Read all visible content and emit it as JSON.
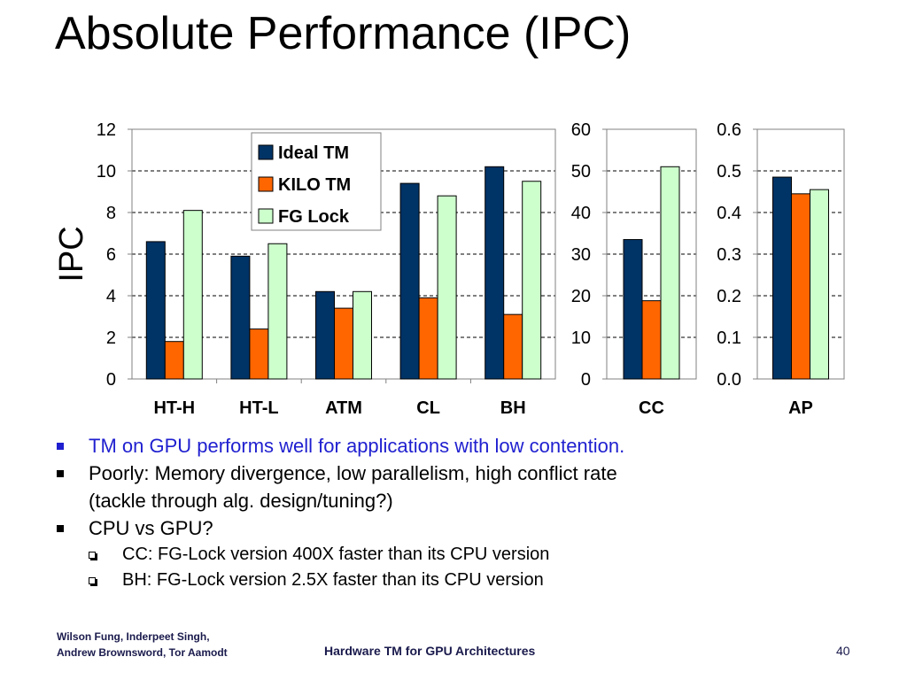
{
  "slide": {
    "title": "Absolute Performance (IPC)",
    "bullets": [
      {
        "text": "TM on GPU performs well for applications with low contention.",
        "color": "#1f1fd0",
        "subs": []
      },
      {
        "text": "Poorly: Memory divergence, low parallelism, high conflict rate",
        "cont": "(tackle through alg. design/tuning?)",
        "subs": []
      },
      {
        "text": "CPU vs GPU?",
        "subs": [
          "CC: FG-Lock version 400X faster than its CPU version",
          "BH: FG-Lock version 2.5X faster than its CPU version"
        ]
      }
    ],
    "footer": {
      "authors_line1": "Wilson Fung, Inderpeet Singh,",
      "authors_line2": "Andrew Brownsword, Tor Aamodt",
      "center": "Hardware TM for GPU Architectures",
      "page": "40"
    }
  },
  "chart_data": [
    {
      "type": "bar",
      "ylabel": "IPC",
      "categories": [
        "HT-H",
        "HT-L",
        "ATM",
        "CL",
        "BH"
      ],
      "ylim": [
        0,
        12
      ],
      "yticks": [
        "0",
        "2",
        "4",
        "6",
        "8",
        "10",
        "12"
      ],
      "grid": true,
      "legend_position": "top-center",
      "series": [
        {
          "name": "Ideal TM",
          "color": "#003366",
          "values": [
            6.6,
            5.9,
            4.2,
            9.4,
            10.2
          ]
        },
        {
          "name": "KILO TM",
          "color": "#ff6600",
          "values": [
            1.8,
            2.4,
            3.4,
            3.9,
            3.1
          ]
        },
        {
          "name": "FG Lock",
          "color": "#ccffcc",
          "values": [
            8.1,
            6.5,
            4.2,
            8.8,
            9.5
          ]
        }
      ]
    },
    {
      "type": "bar",
      "categories": [
        "CC"
      ],
      "ylim": [
        0,
        60
      ],
      "yticks": [
        "0",
        "10",
        "20",
        "30",
        "40",
        "50",
        "60"
      ],
      "grid": true,
      "series": [
        {
          "name": "Ideal TM",
          "color": "#003366",
          "values": [
            33.5
          ]
        },
        {
          "name": "KILO TM",
          "color": "#ff6600",
          "values": [
            18.8
          ]
        },
        {
          "name": "FG Lock",
          "color": "#ccffcc",
          "values": [
            51
          ]
        }
      ]
    },
    {
      "type": "bar",
      "categories": [
        "AP"
      ],
      "ylim": [
        0,
        0.6
      ],
      "yticks": [
        "0.0",
        "0.1",
        "0.2",
        "0.3",
        "0.4",
        "0.5",
        "0.6"
      ],
      "grid": true,
      "series": [
        {
          "name": "Ideal TM",
          "color": "#003366",
          "values": [
            0.485
          ]
        },
        {
          "name": "KILO TM",
          "color": "#ff6600",
          "values": [
            0.445
          ]
        },
        {
          "name": "FG Lock",
          "color": "#ccffcc",
          "values": [
            0.455
          ]
        }
      ]
    }
  ]
}
